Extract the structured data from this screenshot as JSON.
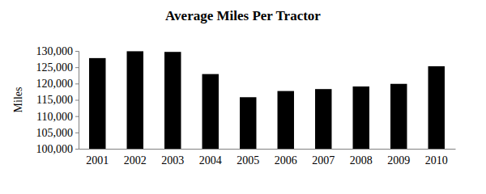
{
  "chart_data": {
    "type": "bar",
    "title": "Average Miles Per Tractor",
    "y_label": "Miles",
    "categories": [
      "2001",
      "2002",
      "2003",
      "2004",
      "2005",
      "2006",
      "2007",
      "2008",
      "2009",
      "2010"
    ],
    "values": [
      127800,
      129900,
      129700,
      122900,
      115800,
      117700,
      118300,
      119100,
      119900,
      125300
    ],
    "color": "#000000",
    "ylim": [
      100000,
      130000
    ],
    "yticks": [
      {
        "value": 100000,
        "label": "100,000"
      },
      {
        "value": 105000,
        "label": "105,000"
      },
      {
        "value": 110000,
        "label": "110,000"
      },
      {
        "value": 115000,
        "label": "115,000"
      },
      {
        "value": 120000,
        "label": "120,000"
      },
      {
        "value": 125000,
        "label": "125,000"
      },
      {
        "value": 130000,
        "label": "130,000"
      }
    ],
    "grid": false
  }
}
